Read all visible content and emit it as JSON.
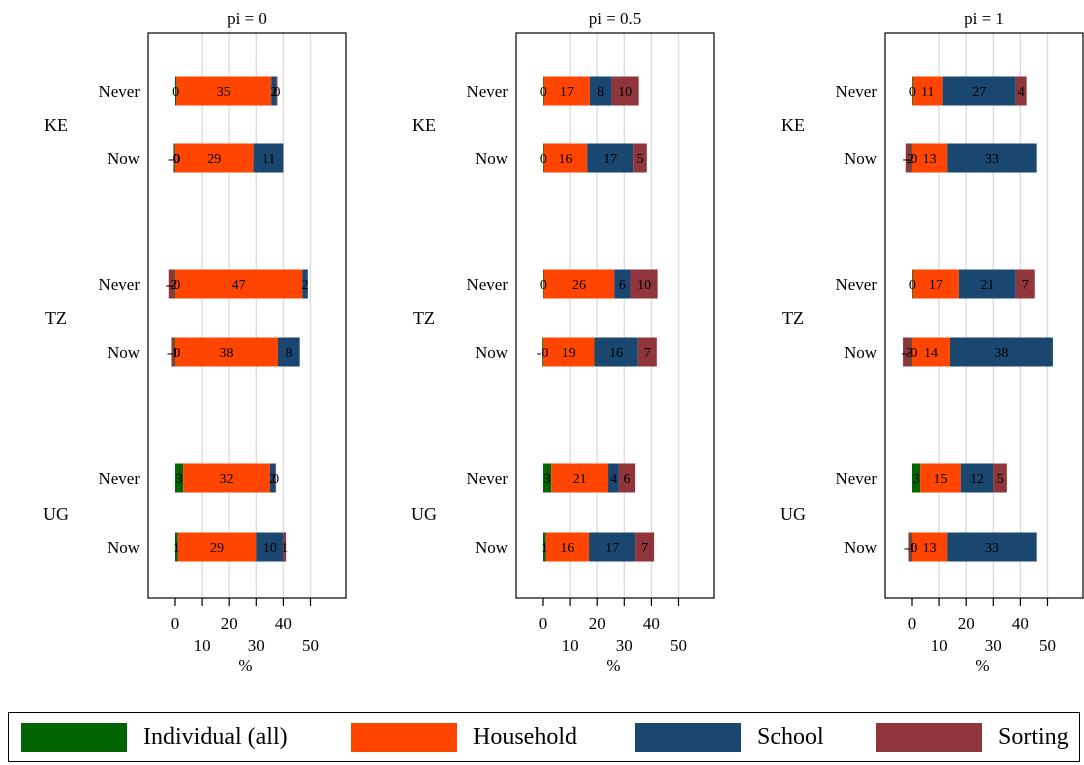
{
  "chart_data": {
    "type": "bar",
    "orientation": "horizontal",
    "stacked": true,
    "panels": [
      {
        "title": "pi = 0",
        "groups": [
          {
            "country": "KE",
            "rows": [
              {
                "label": "Never",
                "values": [
                  0.5,
                  35,
                  2,
                  0.3
                ],
                "labels": [
                  "0",
                  "35",
                  "2",
                  "0"
                ]
              },
              {
                "label": "Now",
                "values": [
                  -0.3,
                  29,
                  11,
                  -0.3
                ],
                "labels": [
                  "-0",
                  "29",
                  "11",
                  "-0"
                ]
              }
            ]
          },
          {
            "country": "TZ",
            "rows": [
              {
                "label": "Never",
                "values": [
                  -0.3,
                  47,
                  2,
                  -2
                ],
                "labels": [
                  "-0",
                  "47",
                  "2",
                  "-2"
                ]
              },
              {
                "label": "Now",
                "values": [
                  -0.3,
                  38,
                  8,
                  -1
                ],
                "labels": [
                  "-0",
                  "38",
                  "8",
                  "-1"
                ]
              }
            ]
          },
          {
            "country": "UG",
            "rows": [
              {
                "label": "Never",
                "values": [
                  3,
                  32,
                  2,
                  0.3
                ],
                "labels": [
                  "3",
                  "32",
                  "2",
                  "0"
                ]
              },
              {
                "label": "Now",
                "values": [
                  1,
                  29,
                  10,
                  1
                ],
                "labels": [
                  "1",
                  "29",
                  "10",
                  "1"
                ]
              }
            ]
          }
        ]
      },
      {
        "title": "pi = 0.5",
        "groups": [
          {
            "country": "KE",
            "rows": [
              {
                "label": "Never",
                "values": [
                  0.3,
                  17,
                  8,
                  10
                ],
                "labels": [
                  "0",
                  "17",
                  "8",
                  "10"
                ]
              },
              {
                "label": "Now",
                "values": [
                  0.3,
                  16,
                  17,
                  5
                ],
                "labels": [
                  "0",
                  "16",
                  "17",
                  "5"
                ]
              }
            ]
          },
          {
            "country": "TZ",
            "rows": [
              {
                "label": "Never",
                "values": [
                  0.3,
                  26,
                  6,
                  10
                ],
                "labels": [
                  "0",
                  "26",
                  "6",
                  "10"
                ]
              },
              {
                "label": "Now",
                "values": [
                  -0.3,
                  19,
                  16,
                  7
                ],
                "labels": [
                  "-0",
                  "19",
                  "16",
                  "7"
                ]
              }
            ]
          },
          {
            "country": "UG",
            "rows": [
              {
                "label": "Never",
                "values": [
                  3,
                  21,
                  4,
                  6
                ],
                "labels": [
                  "3",
                  "21",
                  "4",
                  "6"
                ]
              },
              {
                "label": "Now",
                "values": [
                  1,
                  16,
                  17,
                  7
                ],
                "labels": [
                  "1",
                  "16",
                  "17",
                  "7"
                ]
              }
            ]
          }
        ]
      },
      {
        "title": "pi = 1",
        "groups": [
          {
            "country": "KE",
            "rows": [
              {
                "label": "Never",
                "values": [
                  0.3,
                  11,
                  27,
                  4
                ],
                "labels": [
                  "0",
                  "11",
                  "27",
                  "4"
                ]
              },
              {
                "label": "Now",
                "values": [
                  -0.3,
                  13,
                  33,
                  -2
                ],
                "labels": [
                  "-0",
                  "13",
                  "33",
                  "-2"
                ]
              }
            ]
          },
          {
            "country": "TZ",
            "rows": [
              {
                "label": "Never",
                "values": [
                  0.3,
                  17,
                  21,
                  7
                ],
                "labels": [
                  "0",
                  "17",
                  "21",
                  "7"
                ]
              },
              {
                "label": "Now",
                "values": [
                  -0.3,
                  14,
                  38,
                  -3
                ],
                "labels": [
                  "-0",
                  "14",
                  "38",
                  "-3"
                ]
              }
            ]
          },
          {
            "country": "UG",
            "rows": [
              {
                "label": "Never",
                "values": [
                  3,
                  15,
                  12,
                  5
                ],
                "labels": [
                  "3",
                  "15",
                  "12",
                  "5"
                ]
              },
              {
                "label": "Now",
                "values": [
                  -0.3,
                  13,
                  33,
                  -1
                ],
                "labels": [
                  "-0",
                  "13",
                  "33",
                  "-1"
                ]
              }
            ]
          }
        ]
      }
    ],
    "series": [
      {
        "name": "Individual (all)",
        "color": "#006400"
      },
      {
        "name": "Household",
        "color": "#ff4500"
      },
      {
        "name": "School",
        "color": "#1a476f"
      },
      {
        "name": "Sorting",
        "color": "#90353b"
      }
    ],
    "xlabel": "%",
    "xlim": [
      -5,
      62
    ],
    "xticks_upper": [
      0,
      20,
      40
    ],
    "xticks_lower": [
      10,
      30,
      50
    ],
    "grid": true,
    "legend_position": "bottom"
  },
  "legend": {
    "items": [
      {
        "label": "Individual (all)",
        "color": "#006400"
      },
      {
        "label": "Household",
        "color": "#ff4500"
      },
      {
        "label": "School",
        "color": "#1a476f"
      },
      {
        "label": "Sorting",
        "color": "#90353b"
      }
    ]
  }
}
